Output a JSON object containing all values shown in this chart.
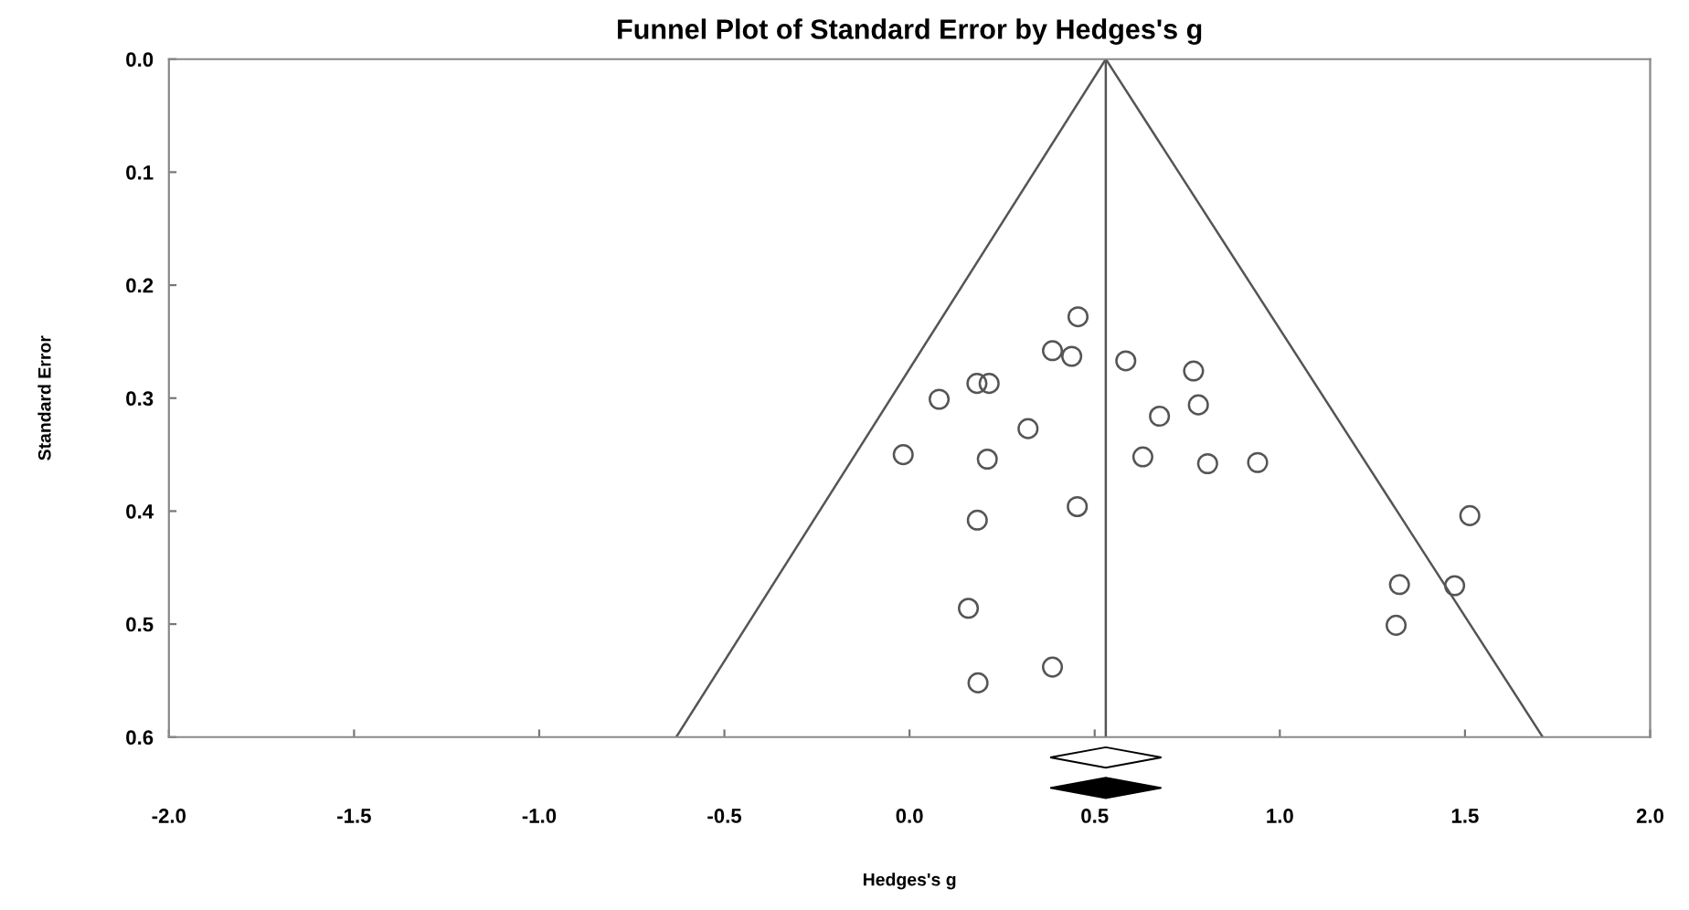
{
  "chart_data": {
    "type": "scatter",
    "title": "Funnel Plot of Standard Error by Hedges's g",
    "xlabel": "Hedges's g",
    "ylabel": "Standard Error",
    "x": [
      0.455,
      0.386,
      0.438,
      0.584,
      0.767,
      0.182,
      0.215,
      0.08,
      0.78,
      0.675,
      0.32,
      -0.017,
      0.21,
      0.63,
      0.805,
      0.94,
      0.453,
      0.183,
      0.159,
      0.386,
      0.185,
      1.513,
      1.323,
      1.472,
      1.314
    ],
    "series": [
      {
        "color": "#555555",
        "marker": "circle",
        "values": [
          0.228,
          0.258,
          0.263,
          0.267,
          0.276,
          0.287,
          0.287,
          0.301,
          0.306,
          0.316,
          0.327,
          0.35,
          0.354,
          0.352,
          0.358,
          0.357,
          0.396,
          0.408,
          0.486,
          0.538,
          0.552,
          0.404,
          0.465,
          0.466,
          0.501
        ]
      },
      {
        "type": "line",
        "color": "#555555",
        "x": [
          0.53,
          -0.63
        ],
        "values": [
          0.0,
          0.6
        ]
      },
      {
        "type": "line",
        "color": "#555555",
        "x": [
          0.53,
          1.71
        ],
        "values": [
          0.0,
          0.6
        ]
      }
    ],
    "ref_lines": [
      {
        "axis": "x",
        "value": 0.53,
        "color": "#555555"
      }
    ],
    "xlim": [
      -2.0,
      2.0
    ],
    "ylim": [
      0.6,
      0.0
    ],
    "xticks": [
      {
        "value": -2.0,
        "label": "-2.0"
      },
      {
        "value": -1.5,
        "label": "-1.5"
      },
      {
        "value": -1.0,
        "label": "-1.0"
      },
      {
        "value": -0.5,
        "label": "-0.5"
      },
      {
        "value": 0.0,
        "label": "0.0"
      },
      {
        "value": 0.5,
        "label": "0.5"
      },
      {
        "value": 1.0,
        "label": "1.0"
      },
      {
        "value": 1.5,
        "label": "1.5"
      },
      {
        "value": 2.0,
        "label": "2.0"
      }
    ],
    "yticks": [
      {
        "value": 0.0,
        "label": "0.0"
      },
      {
        "value": 0.1,
        "label": "0.1"
      },
      {
        "value": 0.2,
        "label": "0.2"
      },
      {
        "value": 0.3,
        "label": "0.3"
      },
      {
        "value": 0.4,
        "label": "0.4"
      },
      {
        "value": 0.5,
        "label": "0.5"
      },
      {
        "value": 0.6,
        "label": "0.6"
      }
    ],
    "grid": false
  }
}
